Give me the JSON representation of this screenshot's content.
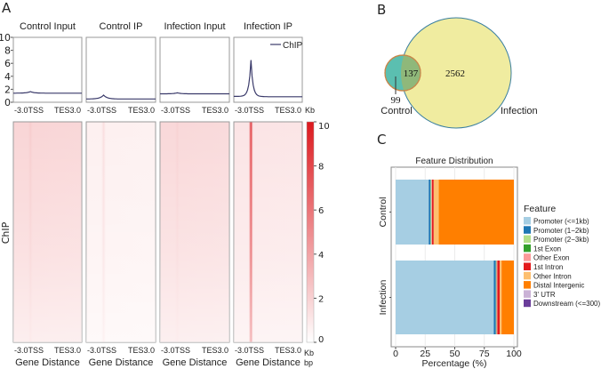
{
  "panel_labels": {
    "a": "A",
    "b": "B",
    "c": "C"
  },
  "chart_data": [
    {
      "type": "line",
      "panel": "A-profile",
      "titles": [
        "Control Input",
        "Control IP",
        "Infection Input",
        "Infection IP"
      ],
      "legend": "ChIP",
      "legend_position": "top-right",
      "yticks": [
        "0",
        "2",
        "4",
        "6",
        "8",
        "10"
      ],
      "ylim": [
        0,
        10
      ],
      "xticks": [
        "-3.0",
        "TSS",
        "TES",
        "3.0"
      ],
      "xunit": "Kb",
      "series": [
        {
          "name": "Control Input",
          "baseline": 1.4,
          "peak": 1.65
        },
        {
          "name": "Control IP",
          "baseline": 0.5,
          "peak": 1.1
        },
        {
          "name": "Infection Input",
          "baseline": 1.3,
          "peak": 1.45
        },
        {
          "name": "Infection IP",
          "baseline": 0.9,
          "peak": 6.5,
          "tail": 0.85
        }
      ]
    },
    {
      "type": "heatmap",
      "panel": "A-heatmap",
      "ylabel": "ChIP",
      "xlabel": "Gene Distance",
      "xunit": "bp",
      "colorbar_ticks": [
        "0",
        "2",
        "4",
        "6",
        "8",
        "10"
      ],
      "clim": [
        0,
        10
      ],
      "mean_signal": [
        1.4,
        0.5,
        1.3,
        0.9
      ],
      "tss_signal": [
        1.7,
        1.1,
        1.5,
        6.5
      ]
    },
    {
      "type": "venn",
      "panel": "B",
      "sets": [
        {
          "name": "Control",
          "only": 99,
          "color": "#5bbfb0"
        },
        {
          "name": "Infection",
          "only": 2562,
          "color": "#f0eca0"
        }
      ],
      "overlap": 137
    },
    {
      "type": "bar",
      "panel": "C",
      "stacked": true,
      "orientation": "horizontal",
      "title": "Feature Distribution",
      "xlabel": "Percentage (%)",
      "categories": [
        "Control",
        "Infection"
      ],
      "xticks": [
        "0",
        "25",
        "50",
        "75",
        "100"
      ],
      "xlim": [
        0,
        100
      ],
      "legend_title": "Feature",
      "legend_position": "right",
      "series": [
        {
          "name": "Promoter (<=1kb)",
          "color": "#a6cee3",
          "values": [
            28.0,
            83.0
          ]
        },
        {
          "name": "Promoter (1−2kb)",
          "color": "#1f78b4",
          "values": [
            1.5,
            1.8
          ]
        },
        {
          "name": "Promoter (2−3kb)",
          "color": "#b2df8a",
          "values": [
            0.4,
            0.3
          ]
        },
        {
          "name": "1st Exon",
          "color": "#33a02c",
          "values": [
            0.3,
            0.2
          ]
        },
        {
          "name": "Other Exon",
          "color": "#fb9a99",
          "values": [
            0.6,
            0.8
          ]
        },
        {
          "name": "1st Intron",
          "color": "#e31a1c",
          "values": [
            1.4,
            1.9
          ]
        },
        {
          "name": "Other Intron",
          "color": "#fdbf6f",
          "values": [
            4.3,
            1.6
          ]
        },
        {
          "name": "Distal Intergenic",
          "color": "#ff7f00",
          "values": [
            63.5,
            10.4
          ]
        },
        {
          "name": "3' UTR",
          "color": "#cab2d6",
          "values": [
            0,
            0
          ]
        },
        {
          "name": "Downstream (<=300)",
          "color": "#6a3d9a",
          "values": [
            0,
            0
          ]
        }
      ]
    }
  ]
}
